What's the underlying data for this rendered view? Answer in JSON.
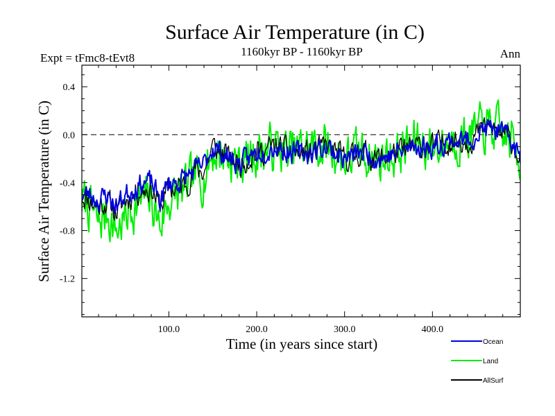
{
  "chart_data": {
    "type": "line",
    "title": "Surface Air Temperature (in C)",
    "subtitle_left": "Expt = tFmc8-tEvt8",
    "subtitle_center": "1160kyr BP - 1160kyr BP",
    "subtitle_right": "Ann",
    "xlabel": "Time (in years since start)",
    "ylabel": "Surface Air Temperature (in C)",
    "xlim": [
      1,
      500
    ],
    "ylim": [
      -1.52,
      0.58
    ],
    "xticks": [
      100,
      200,
      300,
      400
    ],
    "xtick_labels": [
      "100.0",
      "200.0",
      "300.0",
      "400.0"
    ],
    "yticks": [
      0.4,
      0.0,
      -0.4,
      -0.8,
      -1.2
    ],
    "ytick_labels": [
      "0.4",
      "0.0",
      "-0.4",
      "-0.8",
      "-1.2"
    ],
    "reference_line": {
      "y": 0.0,
      "style": "dashed"
    },
    "series": [
      {
        "name": "Land",
        "color": "#00ee00",
        "anchors": [
          [
            1,
            -0.55
          ],
          [
            10,
            -0.6
          ],
          [
            20,
            -0.75
          ],
          [
            30,
            -0.65
          ],
          [
            40,
            -0.8
          ],
          [
            50,
            -0.7
          ],
          [
            60,
            -0.6
          ],
          [
            70,
            -0.55
          ],
          [
            80,
            -0.55
          ],
          [
            90,
            -0.75
          ],
          [
            100,
            -0.55
          ],
          [
            110,
            -0.5
          ],
          [
            120,
            -0.45
          ],
          [
            130,
            -0.35
          ],
          [
            140,
            -0.35
          ],
          [
            150,
            -0.15
          ],
          [
            160,
            -0.15
          ],
          [
            170,
            -0.2
          ],
          [
            180,
            -0.25
          ],
          [
            190,
            -0.2
          ],
          [
            200,
            -0.15
          ],
          [
            220,
            -0.1
          ],
          [
            240,
            -0.15
          ],
          [
            260,
            -0.1
          ],
          [
            280,
            -0.1
          ],
          [
            300,
            -0.2
          ],
          [
            320,
            -0.15
          ],
          [
            340,
            -0.2
          ],
          [
            360,
            -0.15
          ],
          [
            380,
            -0.05
          ],
          [
            400,
            -0.1
          ],
          [
            420,
            -0.05
          ],
          [
            440,
            0.0
          ],
          [
            460,
            0.05
          ],
          [
            470,
            0.05
          ],
          [
            480,
            0.0
          ],
          [
            490,
            -0.05
          ],
          [
            500,
            -0.2
          ]
        ],
        "noise": 0.17,
        "seed": 7
      },
      {
        "name": "AllSurf",
        "color": "#000000",
        "anchors": [
          [
            1,
            -0.5
          ],
          [
            10,
            -0.55
          ],
          [
            20,
            -0.6
          ],
          [
            30,
            -0.55
          ],
          [
            40,
            -0.65
          ],
          [
            50,
            -0.55
          ],
          [
            60,
            -0.5
          ],
          [
            70,
            -0.45
          ],
          [
            80,
            -0.45
          ],
          [
            90,
            -0.6
          ],
          [
            100,
            -0.45
          ],
          [
            110,
            -0.45
          ],
          [
            120,
            -0.4
          ],
          [
            130,
            -0.3
          ],
          [
            140,
            -0.3
          ],
          [
            150,
            -0.1
          ],
          [
            160,
            -0.15
          ],
          [
            170,
            -0.2
          ],
          [
            180,
            -0.25
          ],
          [
            190,
            -0.2
          ],
          [
            200,
            -0.15
          ],
          [
            220,
            -0.1
          ],
          [
            240,
            -0.15
          ],
          [
            260,
            -0.15
          ],
          [
            280,
            -0.1
          ],
          [
            300,
            -0.2
          ],
          [
            320,
            -0.15
          ],
          [
            340,
            -0.2
          ],
          [
            360,
            -0.15
          ],
          [
            380,
            -0.1
          ],
          [
            400,
            -0.1
          ],
          [
            420,
            -0.05
          ],
          [
            440,
            -0.05
          ],
          [
            460,
            0.05
          ],
          [
            470,
            0.05
          ],
          [
            480,
            0.0
          ],
          [
            490,
            -0.05
          ],
          [
            500,
            -0.2
          ]
        ],
        "noise": 0.09,
        "seed": 11
      },
      {
        "name": "Ocean",
        "color": "#0000dd",
        "anchors": [
          [
            1,
            -0.5
          ],
          [
            10,
            -0.5
          ],
          [
            20,
            -0.55
          ],
          [
            30,
            -0.5
          ],
          [
            40,
            -0.6
          ],
          [
            50,
            -0.5
          ],
          [
            60,
            -0.45
          ],
          [
            70,
            -0.4
          ],
          [
            80,
            -0.4
          ],
          [
            90,
            -0.55
          ],
          [
            100,
            -0.4
          ],
          [
            110,
            -0.4
          ],
          [
            120,
            -0.35
          ],
          [
            130,
            -0.3
          ],
          [
            140,
            -0.25
          ],
          [
            150,
            -0.1
          ],
          [
            160,
            -0.15
          ],
          [
            170,
            -0.2
          ],
          [
            180,
            -0.25
          ],
          [
            190,
            -0.2
          ],
          [
            200,
            -0.15
          ],
          [
            220,
            -0.1
          ],
          [
            240,
            -0.15
          ],
          [
            260,
            -0.15
          ],
          [
            280,
            -0.1
          ],
          [
            300,
            -0.2
          ],
          [
            320,
            -0.15
          ],
          [
            340,
            -0.2
          ],
          [
            360,
            -0.15
          ],
          [
            380,
            -0.1
          ],
          [
            400,
            -0.1
          ],
          [
            420,
            -0.05
          ],
          [
            440,
            -0.05
          ],
          [
            460,
            0.05
          ],
          [
            470,
            0.05
          ],
          [
            480,
            0.0
          ],
          [
            490,
            -0.05
          ],
          [
            500,
            -0.2
          ]
        ],
        "noise": 0.08,
        "seed": 23
      }
    ],
    "legend": {
      "placement": "bottom-right",
      "entries": [
        "Ocean",
        "Land",
        "AllSurf"
      ]
    }
  }
}
